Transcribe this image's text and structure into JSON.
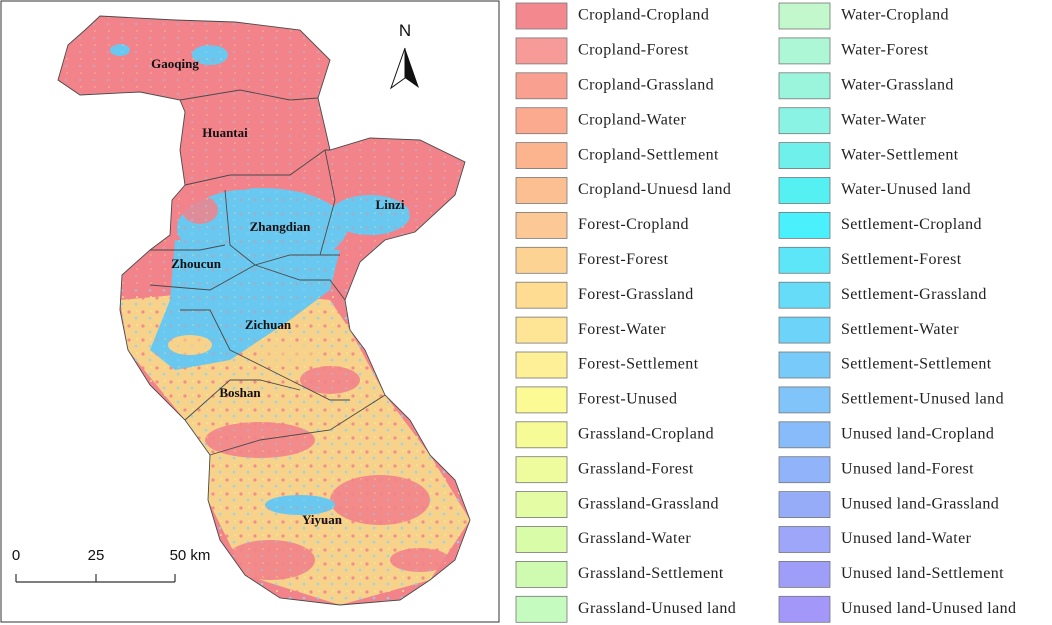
{
  "map": {
    "north_label": "N",
    "regions": [
      "Gaoqing",
      "Huantai",
      "Linzi",
      "Zhangdian",
      "Zhoucun",
      "Zichuan",
      "Boshan",
      "Yiyuan"
    ],
    "scale_bar": [
      "0",
      "25",
      "50 km"
    ]
  },
  "legend": [
    {
      "label": "Cropland-Cropland",
      "color": "#f4888f"
    },
    {
      "label": "Cropland-Forest",
      "color": "#f79b98"
    },
    {
      "label": "Cropland-Grassland",
      "color": "#f9a090"
    },
    {
      "label": "Cropland-Water",
      "color": "#fbaa90"
    },
    {
      "label": "Cropland-Settlement",
      "color": "#fbb48e"
    },
    {
      "label": "Cropland-Unuesd land",
      "color": "#fcbf92"
    },
    {
      "label": "Forest-Cropland",
      "color": "#fcc895"
    },
    {
      "label": "Forest-Forest",
      "color": "#fdd393"
    },
    {
      "label": "Forest-Grassland",
      "color": "#fedd93"
    },
    {
      "label": "Forest-Water",
      "color": "#fee596"
    },
    {
      "label": "Forest-Settlement",
      "color": "#fef096"
    },
    {
      "label": "Forest-Unused",
      "color": "#fcfa94"
    },
    {
      "label": "Grassland-Cropland",
      "color": "#f6fb96"
    },
    {
      "label": "Grassland-Forest",
      "color": "#effc9d"
    },
    {
      "label": "Grassland-Grassland",
      "color": "#e4fca4"
    },
    {
      "label": "Grassland-Water",
      "color": "#d9fca9"
    },
    {
      "label": "Grassland-Settlement",
      "color": "#cffbb0"
    },
    {
      "label": "Grassland-Unused land",
      "color": "#c6fbc0"
    },
    {
      "label": "Water-Cropland",
      "color": "#c2f8cc"
    },
    {
      "label": "Water-Forest",
      "color": "#adf7d6"
    },
    {
      "label": "Water-Grassland",
      "color": "#9af5dc"
    },
    {
      "label": "Water-Water",
      "color": "#8af3e3"
    },
    {
      "label": "Water-Settlement",
      "color": "#6ff0ea"
    },
    {
      "label": "Water-Unused land",
      "color": "#55f0f2"
    },
    {
      "label": "Settlement-Cropland",
      "color": "#4af0fb"
    },
    {
      "label": "Settlement-Forest",
      "color": "#5ce6f8"
    },
    {
      "label": "Settlement-Grassland",
      "color": "#66dcf9"
    },
    {
      "label": "Settlement-Water",
      "color": "#6dd3f9"
    },
    {
      "label": "Settlement-Settlement",
      "color": "#78cbf9"
    },
    {
      "label": "Settlement-Unused land",
      "color": "#80c4f9"
    },
    {
      "label": "Unused land-Cropland",
      "color": "#88bbf9"
    },
    {
      "label": "Unused land-Forest",
      "color": "#90b3f9"
    },
    {
      "label": "Unused land-Grassland",
      "color": "#97acf9"
    },
    {
      "label": "Unused land-Water",
      "color": "#9da6f9"
    },
    {
      "label": "Unused land-Settlement",
      "color": "#9e9ef9"
    },
    {
      "label": "Unused land-Unused land",
      "color": "#a398f9"
    }
  ]
}
